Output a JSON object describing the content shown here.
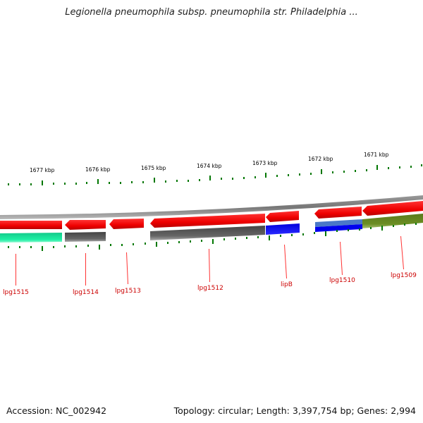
{
  "title": "Legionella pneumophila subsp. pneumophila str. Philadelphia ...",
  "footer": {
    "accession": "Accession: NC_002942",
    "summary": "Topology: circular; Length: 3,397,754 bp; Genes: 2,994"
  },
  "scale_labels": [
    "1677 kbp",
    "1676 kbp",
    "1675 kbp",
    "1674 kbp",
    "1673 kbp",
    "1672 kbp",
    "1671 kbp"
  ],
  "genes": [
    {
      "name": "lpg1515",
      "cog_color": "#1de9a0"
    },
    {
      "name": "lpg1514",
      "cog_color": "#666666"
    },
    {
      "name": "lpg1513",
      "cog_color": ""
    },
    {
      "name": "lpg1512",
      "cog_color": "#666666"
    },
    {
      "name": "lipB",
      "cog_color": "#0000ff"
    },
    {
      "name": "lpg1510",
      "cog_color": "#0000ee"
    },
    {
      "name": "lpg1509",
      "cog_color": "#6b8e23"
    }
  ],
  "colors": {
    "gene_strand": "#ff0000",
    "backbone": "#888888",
    "tick": "#007700",
    "label": "#cc0000"
  }
}
